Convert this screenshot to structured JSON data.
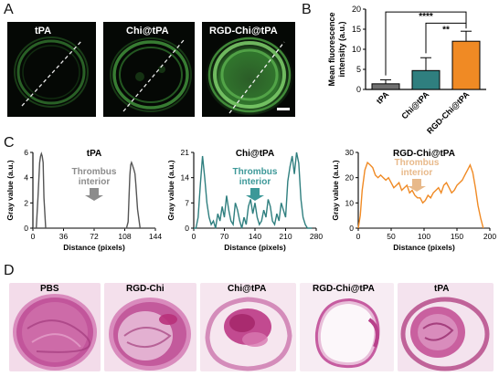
{
  "panels": {
    "A": {
      "letter": "A",
      "images": [
        {
          "label": "tPA",
          "brightness": 0.35
        },
        {
          "label": "Chi@tPA",
          "brightness": 0.55
        },
        {
          "label": "RGD-Chi@tPA",
          "brightness": 0.9
        }
      ]
    },
    "B": {
      "letter": "B",
      "significance": [
        "****",
        "**"
      ]
    },
    "C": {
      "letter": "C",
      "arrow_label_line1": "Thrombus",
      "arrow_label_line2": "interior"
    },
    "D": {
      "letter": "D",
      "images": [
        {
          "label": "PBS"
        },
        {
          "label": "RGD-Chi"
        },
        {
          "label": "Chi@tPA"
        },
        {
          "label": "RGD-Chi@tPA"
        },
        {
          "label": "tPA"
        }
      ]
    }
  },
  "colors": {
    "tpa": "#707070",
    "chi_tpa": "#2f7f7f",
    "rgd_chi_tpa": "#f08a24",
    "thrombus_arrow_tpa": "#8c8c8c",
    "thrombus_arrow_chi": "#3c9898",
    "thrombus_arrow_rgd": "#e8b98a",
    "he_pink": "#c8559a"
  },
  "chart_data": [
    {
      "type": "bar",
      "panel": "B",
      "categories": [
        "tPA",
        "Chi@tPA",
        "RGD-Chi@tPA"
      ],
      "values": [
        1.4,
        4.7,
        12.0
      ],
      "errors": [
        1.0,
        3.2,
        2.5
      ],
      "colors": [
        "#707070",
        "#2f7f7f",
        "#f08a24"
      ],
      "ylabel": "Mean fluorescence intensity (a.u.)",
      "ylim": [
        0,
        20
      ],
      "yticks": [
        0,
        5,
        10,
        15,
        20
      ]
    },
    {
      "type": "line",
      "panel": "C",
      "title": "tPA",
      "xlabel": "Distance (pixels)",
      "ylabel": "Gray value (a.u.)",
      "xlim": [
        0,
        144
      ],
      "ylim": [
        0,
        6
      ],
      "xticks": [
        0,
        36,
        72,
        108,
        144
      ],
      "yticks": [
        0,
        2,
        4,
        6
      ],
      "color": "#555555",
      "x": [
        0,
        4,
        6,
        8,
        9,
        10,
        11,
        12,
        13,
        15,
        18,
        30,
        50,
        80,
        100,
        110,
        112,
        113,
        114,
        115,
        116,
        117,
        118,
        119,
        120,
        121,
        123,
        126,
        130,
        135,
        144
      ],
      "y": [
        0,
        0,
        2.5,
        5.2,
        5.7,
        5.9,
        5.7,
        5.2,
        2.4,
        0,
        0,
        0,
        0,
        0,
        0,
        0,
        0.5,
        2.5,
        4.2,
        5.0,
        5.2,
        5.0,
        4.8,
        4.6,
        4.3,
        3.5,
        1.5,
        0,
        0,
        0,
        0
      ]
    },
    {
      "type": "line",
      "panel": "C",
      "title": "Chi@tPA",
      "xlabel": "Distance (pixels)",
      "ylabel": "Gray value (a.u.)",
      "xlim": [
        0,
        280
      ],
      "ylim": [
        0,
        21
      ],
      "xticks": [
        0,
        70,
        140,
        210,
        280
      ],
      "yticks": [
        0,
        7,
        14,
        21
      ],
      "color": "#2f7f7f",
      "x": [
        0,
        5,
        10,
        15,
        20,
        25,
        30,
        35,
        40,
        45,
        50,
        55,
        60,
        65,
        70,
        75,
        80,
        85,
        90,
        95,
        100,
        105,
        110,
        115,
        120,
        125,
        130,
        135,
        140,
        145,
        150,
        155,
        160,
        165,
        170,
        175,
        180,
        185,
        190,
        195,
        200,
        205,
        210,
        215,
        220,
        225,
        230,
        235,
        240,
        245,
        250,
        255,
        260,
        265,
        270
      ],
      "y": [
        0,
        0,
        3,
        12,
        20,
        14,
        7,
        3,
        1,
        2,
        0,
        4,
        2,
        6,
        3,
        9,
        5,
        2,
        1,
        7,
        5,
        2,
        0,
        3,
        1,
        6,
        8,
        4,
        7,
        3,
        1,
        2,
        5,
        3,
        8,
        6,
        2,
        1,
        4,
        2,
        7,
        5,
        3,
        13,
        17,
        20,
        15,
        21,
        18,
        8,
        3,
        1,
        0,
        0,
        0
      ]
    },
    {
      "type": "line",
      "panel": "C",
      "title": "RGD-Chi@tPA",
      "xlabel": "Distance (pixels)",
      "ylabel": "Gray value (a.u.)",
      "xlim": [
        0,
        200
      ],
      "ylim": [
        0,
        30
      ],
      "xticks": [
        0,
        50,
        100,
        150,
        200
      ],
      "yticks": [
        0,
        10,
        20,
        30
      ],
      "color": "#f08a24",
      "x": [
        0,
        3,
        6,
        10,
        14,
        18,
        22,
        26,
        30,
        34,
        38,
        42,
        46,
        50,
        54,
        58,
        62,
        66,
        70,
        74,
        78,
        82,
        86,
        90,
        94,
        98,
        102,
        106,
        110,
        114,
        118,
        122,
        126,
        130,
        134,
        138,
        142,
        146,
        150,
        154,
        158,
        162,
        166,
        170,
        174,
        178,
        182,
        186,
        190
      ],
      "y": [
        0,
        5,
        15,
        23,
        26,
        25,
        24,
        21,
        20,
        21,
        20,
        19,
        20,
        18,
        16,
        17,
        18,
        15,
        16,
        17,
        14,
        15,
        13,
        12,
        12,
        10,
        11,
        13,
        12,
        14,
        15,
        16,
        14,
        17,
        18,
        16,
        14,
        15,
        17,
        18,
        19,
        21,
        23,
        25,
        22,
        16,
        9,
        4,
        0
      ]
    }
  ]
}
